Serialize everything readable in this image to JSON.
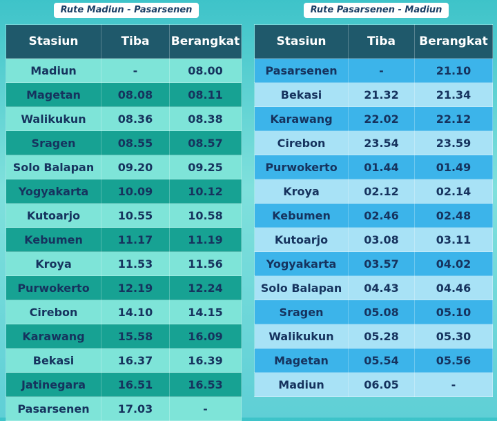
{
  "tables": [
    {
      "title": "Rute Madiun - Pasarsenen",
      "headers": [
        "Stasiun",
        "Tiba",
        "Berangkat"
      ],
      "rows": [
        [
          "Madiun",
          "-",
          "08.00"
        ],
        [
          "Magetan",
          "08.08",
          "08.11"
        ],
        [
          "Walikukun",
          "08.36",
          "08.38"
        ],
        [
          "Sragen",
          "08.55",
          "08.57"
        ],
        [
          "Solo Balapan",
          "09.20",
          "09.25"
        ],
        [
          "Yogyakarta",
          "10.09",
          "10.12"
        ],
        [
          "Kutoarjo",
          "10.55",
          "10.58"
        ],
        [
          "Kebumen",
          "11.17",
          "11.19"
        ],
        [
          "Kroya",
          "11.53",
          "11.56"
        ],
        [
          "Purwokerto",
          "12.19",
          "12.24"
        ],
        [
          "Cirebon",
          "14.10",
          "14.15"
        ],
        [
          "Karawang",
          "15.58",
          "16.09"
        ],
        [
          "Bekasi",
          "16.37",
          "16.39"
        ],
        [
          "Jatinegara",
          "16.51",
          "16.53"
        ],
        [
          "Pasarsenen",
          "17.03",
          "-"
        ]
      ]
    },
    {
      "title": "Rute Pasarsenen - Madiun",
      "headers": [
        "Stasiun",
        "Tiba",
        "Berangkat"
      ],
      "rows": [
        [
          "Pasarsenen",
          "-",
          "21.10"
        ],
        [
          "Bekasi",
          "21.32",
          "21.34"
        ],
        [
          "Karawang",
          "22.02",
          "22.12"
        ],
        [
          "Cirebon",
          "23.54",
          "23.59"
        ],
        [
          "Purwokerto",
          "01.44",
          "01.49"
        ],
        [
          "Kroya",
          "02.12",
          "02.14"
        ],
        [
          "Kebumen",
          "02.46",
          "02.48"
        ],
        [
          "Kutoarjo",
          "03.08",
          "03.11"
        ],
        [
          "Yogyakarta",
          "03.57",
          "04.02"
        ],
        [
          "Solo Balapan",
          "04.43",
          "04.46"
        ],
        [
          "Sragen",
          "05.08",
          "05.10"
        ],
        [
          "Walikukun",
          "05.28",
          "05.30"
        ],
        [
          "Magetan",
          "05.54",
          "05.56"
        ],
        [
          "Madiun",
          "06.05",
          "-"
        ]
      ]
    }
  ]
}
